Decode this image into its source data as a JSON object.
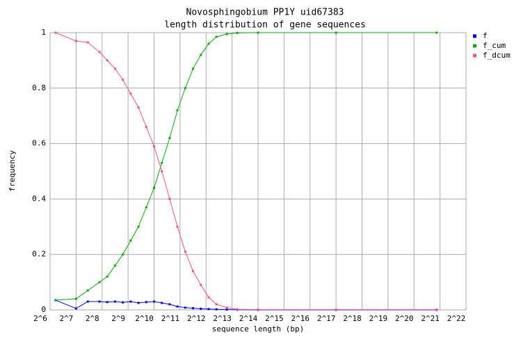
{
  "chart_data": {
    "type": "line",
    "title": "Novosphingobium PP1Y uid67383",
    "subtitle": "length distribution of gene sequences",
    "x_label": "sequence length (bp)",
    "y_label": "frequency",
    "log_x": true,
    "grid": true,
    "legend": "right",
    "x": [
      74,
      128,
      175,
      239,
      294,
      362,
      446,
      549,
      676,
      832,
      1024,
      1261,
      1552,
      1911,
      2353,
      2896,
      3566,
      4390,
      5404,
      7131,
      9410,
      16384,
      131072,
      1915000
    ],
    "series": [
      {
        "name": "f",
        "color": "#0000ff",
        "values": [
          0.035,
          0.005,
          0.03,
          0.03,
          0.028,
          0.03,
          0.027,
          0.03,
          0.025,
          0.028,
          0.03,
          0.025,
          0.02,
          0.012,
          0.008,
          0.006,
          0.004,
          0.003,
          0.002,
          0.001,
          0.0005,
          0,
          0,
          0
        ]
      },
      {
        "name": "f_cum",
        "color": "#00b000",
        "values": [
          0.035,
          0.04,
          0.07,
          0.1,
          0.12,
          0.16,
          0.2,
          0.25,
          0.3,
          0.37,
          0.44,
          0.53,
          0.62,
          0.72,
          0.8,
          0.87,
          0.92,
          0.96,
          0.985,
          0.995,
          0.999,
          1,
          1,
          1
        ]
      },
      {
        "name": "f_dcum",
        "color": "#ff4f7f",
        "values": [
          1,
          0.97,
          0.965,
          0.93,
          0.9,
          0.87,
          0.83,
          0.78,
          0.73,
          0.66,
          0.59,
          0.5,
          0.4,
          0.3,
          0.21,
          0.14,
          0.09,
          0.045,
          0.02,
          0.008,
          0.002,
          0.001,
          0.001,
          0.001
        ]
      }
    ],
    "xlim": [
      64,
      4194304
    ],
    "xticks": [
      {
        "value": 64,
        "label": "2^6"
      },
      {
        "value": 128,
        "label": "2^7"
      },
      {
        "value": 256,
        "label": "2^8"
      },
      {
        "value": 512,
        "label": "2^9"
      },
      {
        "value": 1024,
        "label": "2^10"
      },
      {
        "value": 2048,
        "label": "2^11"
      },
      {
        "value": 4096,
        "label": "2^12"
      },
      {
        "value": 8192,
        "label": "2^13"
      },
      {
        "value": 16384,
        "label": "2^14"
      },
      {
        "value": 32768,
        "label": "2^15"
      },
      {
        "value": 65536,
        "label": "2^16"
      },
      {
        "value": 131072,
        "label": "2^17"
      },
      {
        "value": 262144,
        "label": "2^18"
      },
      {
        "value": 524288,
        "label": "2^19"
      },
      {
        "value": 1048576,
        "label": "2^20"
      },
      {
        "value": 2097152,
        "label": "2^21"
      },
      {
        "value": 4194304,
        "label": "2^22"
      }
    ],
    "ylim": [
      0,
      1
    ],
    "yticks": [
      0,
      0.2,
      0.4,
      0.6,
      0.8,
      1
    ]
  }
}
